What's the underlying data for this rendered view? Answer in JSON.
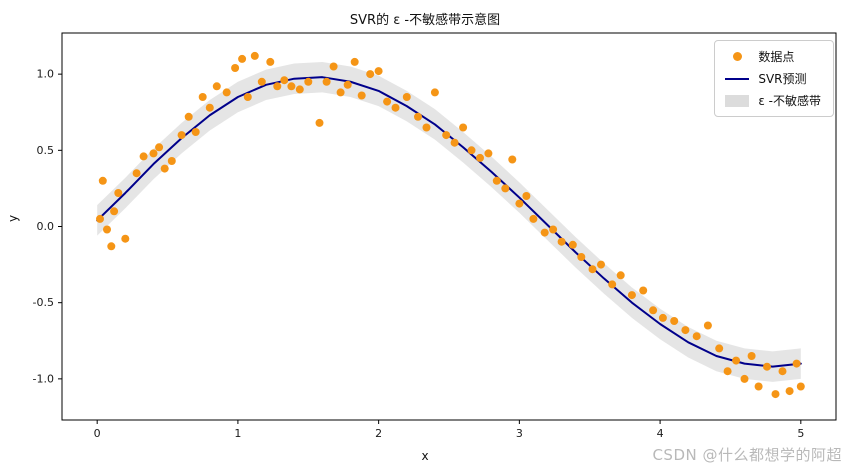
{
  "watermark": {
    "text": "CSDN @什么都想学的阿超"
  },
  "chart_data": {
    "type": "scatter",
    "title": "SVR的 ε -不敏感带示意图",
    "xlabel": "x",
    "ylabel": "y",
    "xlim": [
      -0.25,
      5.25
    ],
    "ylim": [
      -1.27,
      1.27
    ],
    "xticks": [
      0,
      1,
      2,
      3,
      4,
      5
    ],
    "xticklabels": [
      "0",
      "1",
      "2",
      "3",
      "4",
      "5"
    ],
    "yticks": [
      -1.0,
      -0.5,
      0.0,
      0.5,
      1.0
    ],
    "yticklabels": [
      "-1.0",
      "-0.5",
      "0.0",
      "0.5",
      "1.0"
    ],
    "grid": false,
    "legend_position": "upper right",
    "epsilon": 0.1,
    "series": [
      {
        "name": "数据点",
        "type": "scatter",
        "color": "#f59516",
        "points": [
          [
            0.02,
            0.05
          ],
          [
            0.04,
            0.3
          ],
          [
            0.07,
            -0.02
          ],
          [
            0.1,
            -0.13
          ],
          [
            0.12,
            0.1
          ],
          [
            0.15,
            0.22
          ],
          [
            0.2,
            -0.08
          ],
          [
            0.28,
            0.35
          ],
          [
            0.33,
            0.46
          ],
          [
            0.4,
            0.48
          ],
          [
            0.44,
            0.52
          ],
          [
            0.48,
            0.38
          ],
          [
            0.53,
            0.43
          ],
          [
            0.6,
            0.6
          ],
          [
            0.65,
            0.72
          ],
          [
            0.7,
            0.62
          ],
          [
            0.75,
            0.85
          ],
          [
            0.8,
            0.78
          ],
          [
            0.85,
            0.92
          ],
          [
            0.92,
            0.88
          ],
          [
            0.98,
            1.04
          ],
          [
            1.03,
            1.1
          ],
          [
            1.07,
            0.85
          ],
          [
            1.12,
            1.12
          ],
          [
            1.17,
            0.95
          ],
          [
            1.23,
            1.08
          ],
          [
            1.28,
            0.92
          ],
          [
            1.33,
            0.96
          ],
          [
            1.38,
            0.92
          ],
          [
            1.44,
            0.9
          ],
          [
            1.5,
            0.95
          ],
          [
            1.58,
            0.68
          ],
          [
            1.63,
            0.95
          ],
          [
            1.68,
            1.05
          ],
          [
            1.73,
            0.88
          ],
          [
            1.78,
            0.93
          ],
          [
            1.83,
            1.08
          ],
          [
            1.88,
            0.86
          ],
          [
            1.94,
            1.0
          ],
          [
            2.0,
            1.02
          ],
          [
            2.06,
            0.82
          ],
          [
            2.12,
            0.78
          ],
          [
            2.2,
            0.85
          ],
          [
            2.28,
            0.72
          ],
          [
            2.34,
            0.65
          ],
          [
            2.4,
            0.88
          ],
          [
            2.48,
            0.6
          ],
          [
            2.54,
            0.55
          ],
          [
            2.6,
            0.65
          ],
          [
            2.66,
            0.5
          ],
          [
            2.72,
            0.45
          ],
          [
            2.78,
            0.48
          ],
          [
            2.84,
            0.3
          ],
          [
            2.9,
            0.25
          ],
          [
            2.95,
            0.44
          ],
          [
            3.0,
            0.15
          ],
          [
            3.05,
            0.2
          ],
          [
            3.1,
            0.05
          ],
          [
            3.18,
            -0.04
          ],
          [
            3.24,
            -0.02
          ],
          [
            3.3,
            -0.1
          ],
          [
            3.38,
            -0.12
          ],
          [
            3.44,
            -0.2
          ],
          [
            3.52,
            -0.28
          ],
          [
            3.58,
            -0.25
          ],
          [
            3.66,
            -0.38
          ],
          [
            3.72,
            -0.32
          ],
          [
            3.8,
            -0.45
          ],
          [
            3.88,
            -0.42
          ],
          [
            3.95,
            -0.55
          ],
          [
            4.02,
            -0.6
          ],
          [
            4.1,
            -0.62
          ],
          [
            4.18,
            -0.68
          ],
          [
            4.26,
            -0.72
          ],
          [
            4.34,
            -0.65
          ],
          [
            4.42,
            -0.8
          ],
          [
            4.48,
            -0.95
          ],
          [
            4.54,
            -0.88
          ],
          [
            4.6,
            -1.0
          ],
          [
            4.65,
            -0.85
          ],
          [
            4.7,
            -1.05
          ],
          [
            4.76,
            -0.92
          ],
          [
            4.82,
            -1.1
          ],
          [
            4.87,
            -0.95
          ],
          [
            4.92,
            -1.08
          ],
          [
            4.97,
            -0.9
          ],
          [
            5.0,
            -1.05
          ]
        ]
      },
      {
        "name": "SVR预测",
        "type": "line",
        "color": "#00008b",
        "x": [
          0,
          0.2,
          0.4,
          0.6,
          0.8,
          1.0,
          1.2,
          1.4,
          1.6,
          1.8,
          2.0,
          2.2,
          2.4,
          2.6,
          2.8,
          3.0,
          3.2,
          3.4,
          3.6,
          3.8,
          4.0,
          4.2,
          4.4,
          4.6,
          4.8,
          5.0
        ],
        "y": [
          0.04,
          0.22,
          0.41,
          0.58,
          0.73,
          0.85,
          0.93,
          0.97,
          0.98,
          0.95,
          0.89,
          0.79,
          0.67,
          0.52,
          0.36,
          0.19,
          0.01,
          -0.17,
          -0.34,
          -0.5,
          -0.64,
          -0.76,
          -0.85,
          -0.9,
          -0.92,
          -0.9
        ]
      },
      {
        "name": "ε -不敏感带",
        "type": "band",
        "color": "#cfcfcf",
        "around": "SVR预测",
        "half_width": 0.1
      }
    ]
  }
}
